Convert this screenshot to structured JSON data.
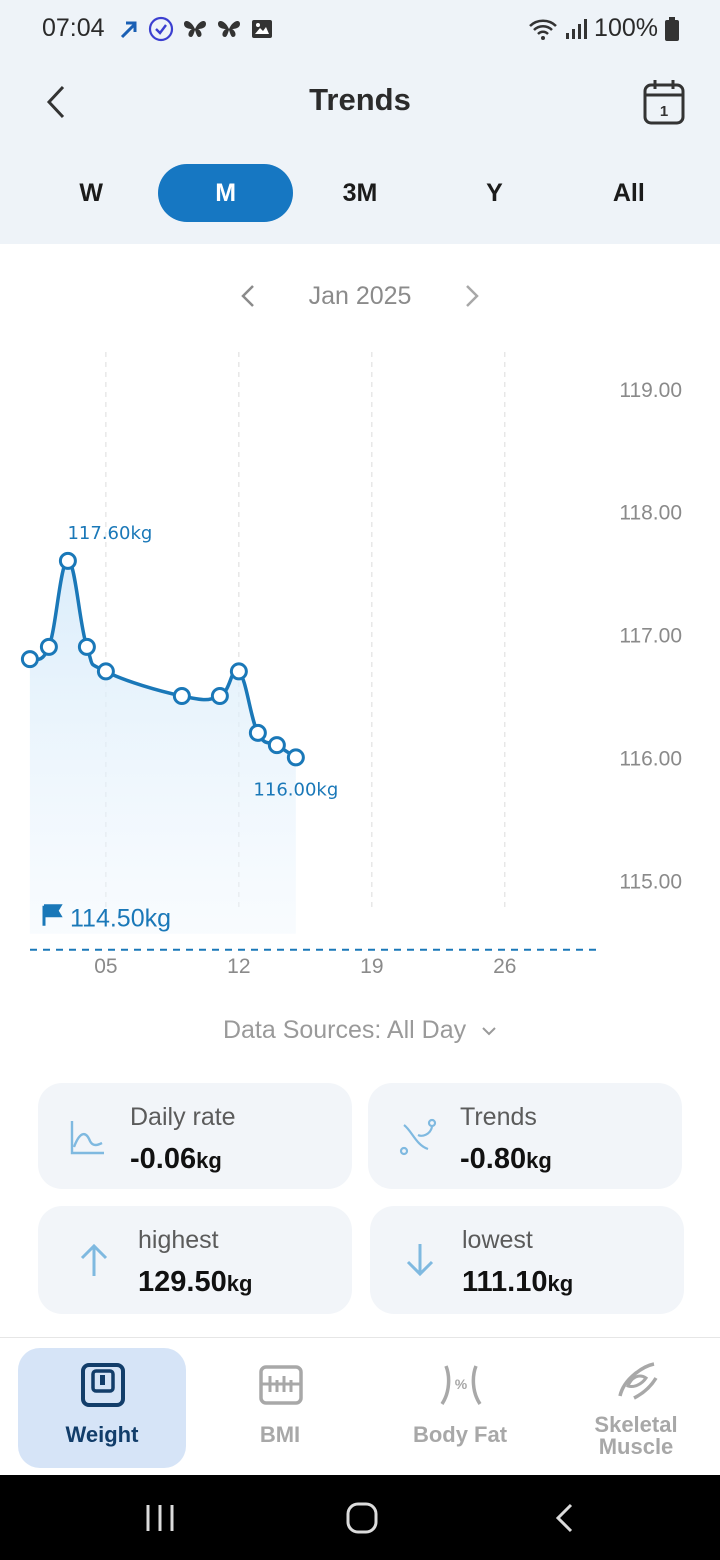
{
  "status_bar": {
    "time": "07:04",
    "battery": "100%"
  },
  "header": {
    "title": "Trends",
    "calendar_day": "1"
  },
  "tabs": [
    {
      "label": "W",
      "active": false
    },
    {
      "label": "M",
      "active": true
    },
    {
      "label": "3M",
      "active": false
    },
    {
      "label": "Y",
      "active": false
    },
    {
      "label": "All",
      "active": false
    }
  ],
  "month_nav": {
    "label": "Jan 2025"
  },
  "chart_data": {
    "type": "line",
    "ytick_labels": [
      "119.00",
      "118.00",
      "117.00",
      "116.00",
      "115.00"
    ],
    "y_ticks": [
      119,
      118,
      117,
      116,
      115
    ],
    "ylim": [
      114.4,
      119.3
    ],
    "xtick_labels": [
      "05",
      "12",
      "19",
      "26"
    ],
    "x_ticks": [
      5,
      12,
      19,
      26
    ],
    "xlim": [
      0.9,
      30.8
    ],
    "series": [
      {
        "x": [
          1,
          2,
          3,
          4,
          5,
          9,
          11,
          12,
          13,
          14,
          15
        ],
        "y": [
          116.8,
          116.9,
          117.6,
          116.9,
          116.7,
          116.5,
          116.5,
          116.7,
          116.2,
          116.1,
          116.0
        ]
      }
    ],
    "max_label": "117.60kg",
    "last_label": "116.00kg",
    "goal": {
      "value": 114.5,
      "label": "114.50kg"
    },
    "accent": "#1a78b8"
  },
  "data_sources": {
    "label": "Data Sources: All Day"
  },
  "stats": {
    "daily_rate": {
      "label": "Daily rate",
      "value": "-0.06",
      "unit": "kg"
    },
    "trends": {
      "label": "Trends",
      "value": "-0.80",
      "unit": "kg"
    },
    "highest": {
      "label": "highest",
      "value": "129.50",
      "unit": "kg"
    },
    "lowest": {
      "label": "lowest",
      "value": "111.10",
      "unit": "kg"
    }
  },
  "bottom_nav": {
    "weight": "Weight",
    "bmi": "BMI",
    "body_fat": "Body Fat",
    "skeletal_line1": "Skeletal",
    "skeletal_line2": "Muscle"
  }
}
